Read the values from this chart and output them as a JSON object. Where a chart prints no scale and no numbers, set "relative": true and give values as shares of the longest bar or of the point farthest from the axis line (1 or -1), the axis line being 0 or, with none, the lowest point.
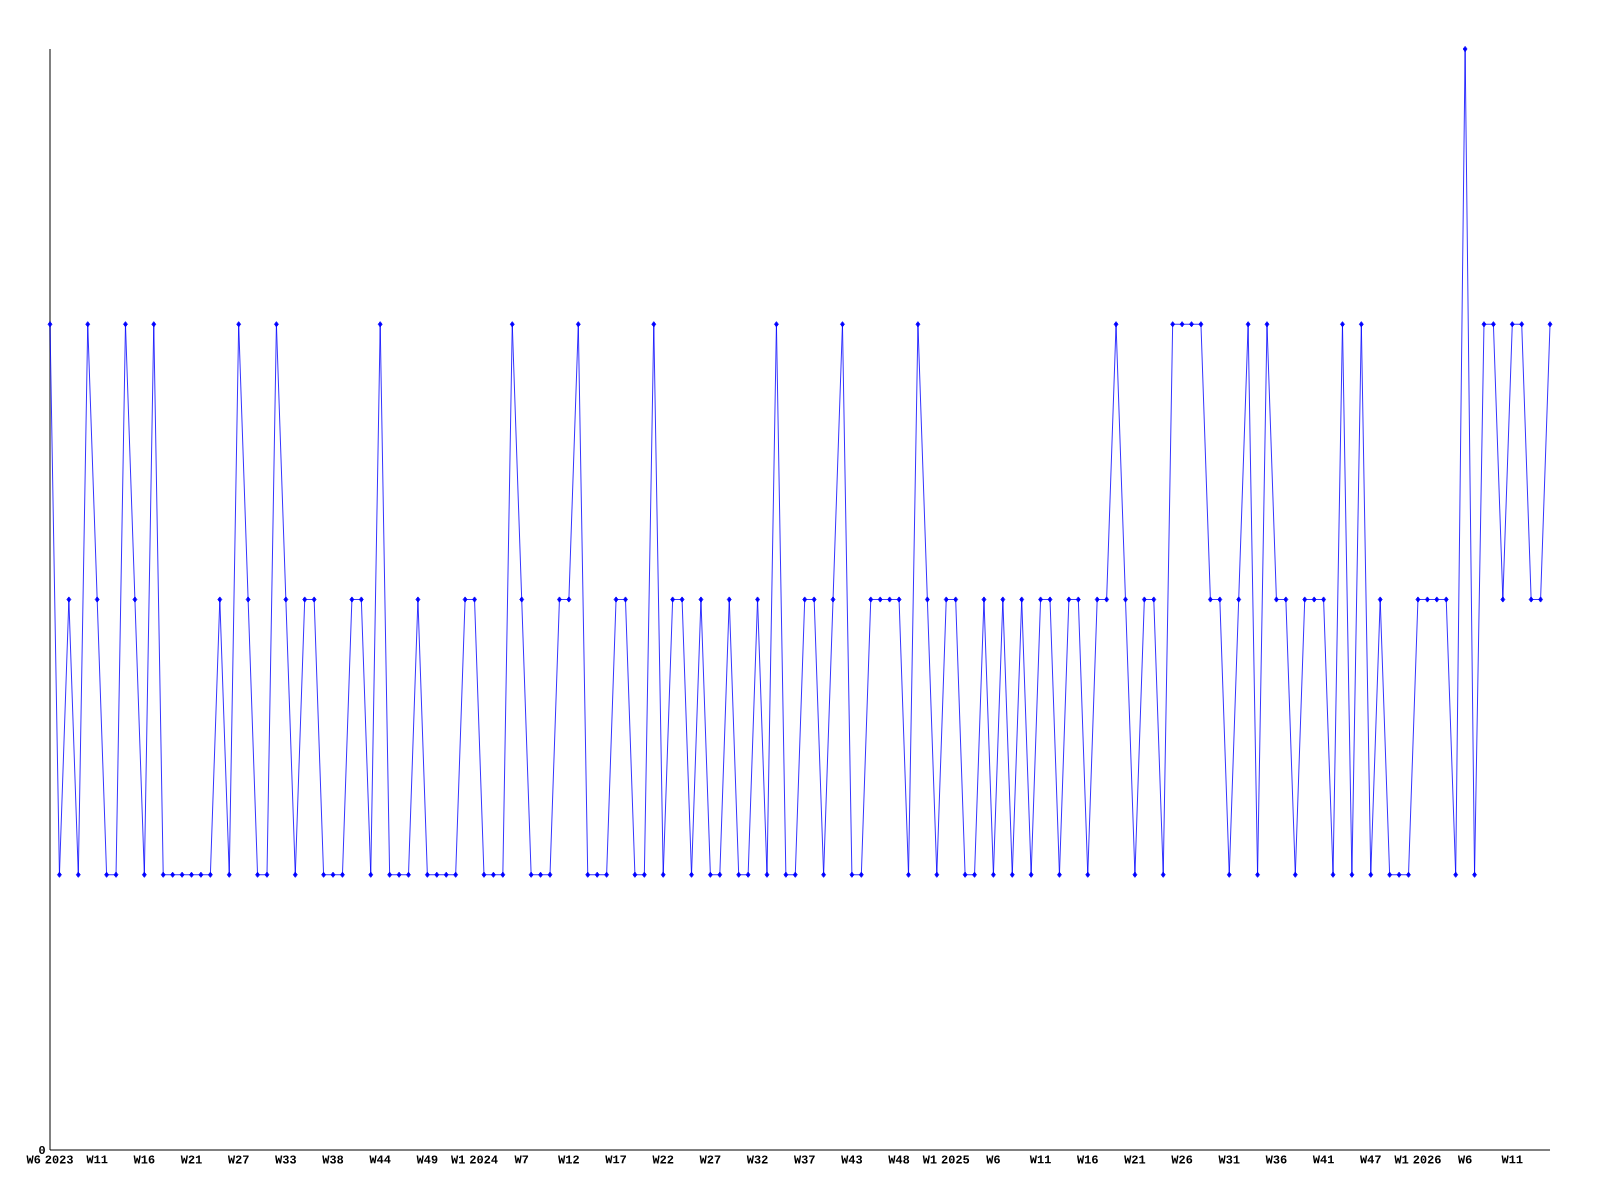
{
  "chart_data": {
    "type": "line",
    "relative": true,
    "color": "#0000ff",
    "marker": "diamond",
    "categories": [
      "W6 2023",
      null,
      null,
      null,
      null,
      "W11",
      null,
      null,
      null,
      null,
      "W16",
      null,
      null,
      null,
      null,
      "W21",
      null,
      null,
      null,
      null,
      "W27",
      null,
      null,
      null,
      null,
      "W33",
      null,
      null,
      null,
      null,
      "W38",
      null,
      null,
      null,
      null,
      "W44",
      null,
      null,
      null,
      null,
      "W49",
      null,
      null,
      null,
      null,
      "W1 2024",
      null,
      null,
      null,
      null,
      "W7",
      null,
      null,
      null,
      null,
      "W12",
      null,
      null,
      null,
      null,
      "W17",
      null,
      null,
      null,
      null,
      "W22",
      null,
      null,
      null,
      null,
      "W27",
      null,
      null,
      null,
      null,
      "W32",
      null,
      null,
      null,
      null,
      "W37",
      null,
      null,
      null,
      null,
      "W43",
      null,
      null,
      null,
      null,
      "W48",
      null,
      null,
      null,
      null,
      "W1 2025",
      null,
      null,
      null,
      null,
      "W6",
      null,
      null,
      null,
      null,
      "W11",
      null,
      null,
      null,
      null,
      "W16",
      null,
      null,
      null,
      null,
      "W21",
      null,
      null,
      null,
      null,
      "W26",
      null,
      null,
      null,
      null,
      "W31",
      null,
      null,
      null,
      null,
      "W36",
      null,
      null,
      null,
      null,
      "W41",
      null,
      null,
      null,
      null,
      "W47",
      null,
      null,
      null,
      null,
      "W1 2026",
      null,
      null,
      null,
      null,
      "W6",
      null,
      null,
      null,
      null,
      "W11",
      null,
      null,
      null,
      null
    ],
    "values": [
      0.75,
      0.25,
      0.5,
      0.25,
      0.75,
      0.5,
      0.25,
      0.25,
      0.75,
      0.5,
      0.25,
      0.75,
      0.25,
      0.25,
      0.25,
      0.25,
      0.25,
      0.25,
      0.5,
      0.25,
      0.75,
      0.5,
      0.25,
      0.25,
      0.75,
      0.5,
      0.25,
      0.5,
      0.5,
      0.25,
      0.25,
      0.25,
      0.5,
      0.5,
      0.25,
      0.75,
      0.25,
      0.25,
      0.25,
      0.5,
      0.25,
      0.25,
      0.25,
      0.25,
      0.5,
      0.5,
      0.25,
      0.25,
      0.25,
      0.75,
      0.5,
      0.25,
      0.25,
      0.25,
      0.5,
      0.5,
      0.75,
      0.25,
      0.25,
      0.25,
      0.5,
      0.5,
      0.25,
      0.25,
      0.75,
      0.25,
      0.5,
      0.5,
      0.25,
      0.5,
      0.25,
      0.25,
      0.5,
      0.25,
      0.25,
      0.5,
      0.25,
      0.75,
      0.25,
      0.25,
      0.5,
      0.5,
      0.25,
      0.5,
      0.75,
      0.25,
      0.25,
      0.5,
      0.5,
      0.5,
      0.5,
      0.25,
      0.75,
      0.5,
      0.25,
      0.5,
      0.5,
      0.25,
      0.25,
      0.5,
      0.25,
      0.5,
      0.25,
      0.5,
      0.25,
      0.5,
      0.5,
      0.25,
      0.5,
      0.5,
      0.25,
      0.5,
      0.5,
      0.75,
      0.5,
      0.25,
      0.5,
      0.5,
      0.25,
      0.75,
      0.75,
      0.75,
      0.75,
      0.5,
      0.5,
      0.25,
      0.5,
      0.75,
      0.25,
      0.75,
      0.5,
      0.5,
      0.25,
      0.5,
      0.5,
      0.5,
      0.25,
      0.75,
      0.25,
      0.75,
      0.25,
      0.5,
      0.25,
      0.25,
      0.25,
      0.5,
      0.5,
      0.5,
      0.5,
      0.25,
      1,
      0.25,
      0.75,
      0.75,
      0.5,
      0.75,
      0.75,
      0.5,
      0.5,
      0.75
    ],
    "annotations": [
      "0"
    ]
  }
}
